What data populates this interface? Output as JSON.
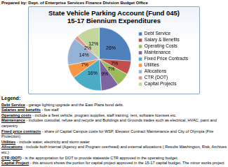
{
  "header": "Prepared by: Dept. of Enterprise Services Finance Division Budget Office",
  "chart_data": {
    "type": "pie",
    "title": [
      "State Vehicle Parking Account (Fund 045)",
      "15-17 Biennium Expenditures"
    ],
    "categories": [
      "Debt Service",
      "Salary & Benefits",
      "Operating Costs",
      "Maintenance",
      "Fixed Price Contracts",
      "Utilities",
      "Allocations",
      "CTR (DOT)",
      "Capital Projects"
    ],
    "values": [
      26,
      7,
      7,
      9,
      16,
      7,
      14,
      2,
      12
    ],
    "value_labels": [
      "26%",
      "7%",
      "7%",
      "9%",
      "16%",
      "7%",
      "14%",
      "2%",
      "12%"
    ],
    "colors": [
      "#4f81bd",
      "#c0504d",
      "#9bbb59",
      "#8064a2",
      "#4bacc6",
      "#f79646",
      "#95b3d7",
      "#d99694",
      "#c3d69b"
    ],
    "legend": "right",
    "data_labels": true
  },
  "notes": {
    "heading": "Legend:",
    "items": [
      {
        "term": "Debt Service",
        "text": " - garage lighting upgrade and the East Plaza bond debt."
      },
      {
        "term": "Salaries and benefits",
        "text": " - five staff"
      },
      {
        "term": "Operating costs",
        "text": " - include a fleet vehicle, program supplies, staff training, rent, software licenses etc."
      },
      {
        "term": "Maintenance",
        "text": " - includes custodial, refuse and recycle and Buildings and Grounds trades such as electrical, HVAC, paint and carpentry"
      },
      {
        "term": "Fixed price contracts",
        "text": " - share of Capital Campus costs for WSP, Elevator Contract Maintenance and City of Olympia (Fire Protection)"
      },
      {
        "term": "Utilities",
        "text": " - include water, electricity and storm water"
      },
      {
        "term": "Allocations",
        "text": " - include both internal (Agency and Program overhead) and external allocations ( Results Washington, Risk, Archives etc.)"
      },
      {
        "term": "CTR (DOT)",
        "text": " - is the appropriation for DOT to provide statewide CTR approved in the operating budget."
      },
      {
        "term": "Capital Project",
        "text": " - this amount shows the portion for capital project approved in the 15-17 capital budget. The minor works project completed this year allowed DES to study the parking trends on campus and implement parking strategies."
      }
    ]
  }
}
